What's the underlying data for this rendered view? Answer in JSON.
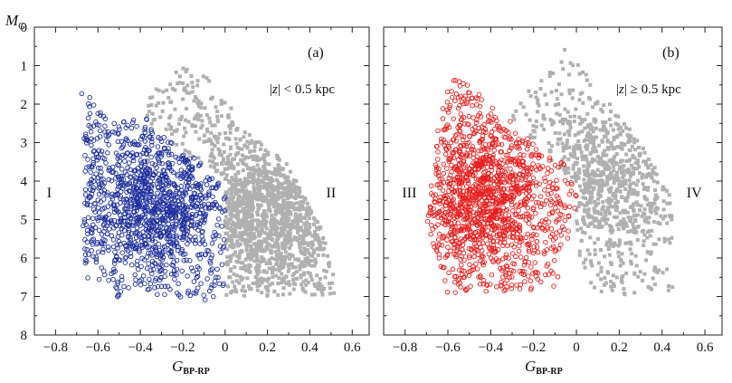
{
  "chart_data": [
    {
      "type": "scatter",
      "panel": "(a)",
      "condition": {
        "abs_open": "|",
        "var": "z",
        "abs_close": "|",
        "rel": " < 0.5 kpc"
      },
      "y_axis": {
        "label": "M",
        "label_sub": "G",
        "ylim": [
          0,
          8
        ],
        "inverted": true,
        "ticks": [
          0,
          1,
          2,
          3,
          4,
          5,
          6,
          7,
          8
        ]
      },
      "x_axis": {
        "label": "G",
        "label_sub": "BP-RP",
        "xlim": [
          -0.9,
          0.68
        ],
        "ticks": [
          -0.8,
          -0.6,
          -0.4,
          -0.2,
          0,
          0.2,
          0.4,
          0.6
        ],
        "tick_labels": [
          "−0.8",
          "−0.6",
          "−0.4",
          "−0.2",
          "0",
          "0.2",
          "0.4",
          "0.6"
        ]
      },
      "region_labels": [
        {
          "text": "I",
          "x": -0.83,
          "y": 4.3
        },
        {
          "text": "II",
          "x": 0.5,
          "y": 4.3
        }
      ],
      "series": [
        {
          "marker": "open-circle",
          "color": "#1f2f9e",
          "x_range": [
            -0.68,
            0
          ],
          "density_peak": [
            -0.33,
            4.6
          ],
          "envelope": [
            [
              -0.68,
              1.45
            ],
            [
              -0.55,
              2.5
            ],
            [
              -0.35,
              2.3
            ],
            [
              -0.2,
              3.2
            ],
            [
              0,
              3.9
            ],
            [
              0,
              6.9
            ],
            [
              -0.05,
              7.1
            ],
            [
              -0.3,
              7.05
            ],
            [
              -0.55,
              7.0
            ],
            [
              -0.68,
              6.6
            ],
            [
              -0.66,
              3.5
            ]
          ],
          "n_points": 1300
        },
        {
          "marker": "filled-square",
          "color": "#b0b0b0",
          "x_range": [
            -0.35,
            0.55
          ],
          "density_peak": [
            0.2,
            4.9
          ],
          "envelope": [
            [
              -0.35,
              1.6
            ],
            [
              -0.2,
              1.05
            ],
            [
              -0.1,
              1.2
            ],
            [
              0.1,
              2.6
            ],
            [
              0.3,
              3.6
            ],
            [
              0.45,
              5.2
            ],
            [
              0.55,
              6.95
            ],
            [
              0.3,
              7.0
            ],
            [
              0,
              7.0
            ],
            [
              0,
              3.9
            ],
            [
              -0.2,
              3.2
            ],
            [
              -0.38,
              2.4
            ]
          ],
          "n_points": 1500
        }
      ]
    },
    {
      "type": "scatter",
      "panel": "(b)",
      "condition": {
        "abs_open": "|",
        "var": "z",
        "abs_close": "|",
        "rel": " ≥ 0.5 kpc"
      },
      "y_axis": {
        "ylim": [
          0,
          8
        ],
        "inverted": true
      },
      "x_axis": {
        "label": "G",
        "label_sub": "BP-RP",
        "xlim": [
          -0.9,
          0.68
        ],
        "ticks": [
          -0.8,
          -0.6,
          -0.4,
          -0.2,
          0,
          0.2,
          0.4,
          0.6
        ],
        "tick_labels": [
          "−0.8",
          "−0.6",
          "−0.4",
          "−0.2",
          "0",
          "0.2",
          "0.4",
          "0.6"
        ]
      },
      "region_labels": [
        {
          "text": "III",
          "x": -0.78,
          "y": 4.3
        },
        {
          "text": "IV",
          "x": 0.55,
          "y": 4.3
        }
      ],
      "series": [
        {
          "marker": "open-circle",
          "color": "#e8201e",
          "x_range": [
            -0.7,
            0
          ],
          "density_peak": [
            -0.43,
            4.4
          ],
          "envelope": [
            [
              -0.6,
              1.3
            ],
            [
              -0.5,
              1.5
            ],
            [
              -0.35,
              2.2
            ],
            [
              -0.2,
              3.0
            ],
            [
              -0.05,
              3.6
            ],
            [
              0,
              4.1
            ],
            [
              0,
              5.0
            ],
            [
              -0.1,
              6.8
            ],
            [
              -0.4,
              6.9
            ],
            [
              -0.6,
              6.95
            ],
            [
              -0.7,
              5.0
            ],
            [
              -0.64,
              2.4
            ]
          ],
          "n_points": 1400
        },
        {
          "marker": "filled-square",
          "color": "#b0b0b0",
          "x_range": [
            -0.25,
            0.45
          ],
          "density_peak": [
            0.15,
            4.0
          ],
          "envelope": [
            [
              -0.28,
              2.0
            ],
            [
              -0.15,
              1.2
            ],
            [
              -0.05,
              0.5
            ],
            [
              0.1,
              1.6
            ],
            [
              0.3,
              3.0
            ],
            [
              0.45,
              4.4
            ],
            [
              0.45,
              6.9
            ],
            [
              0.1,
              7.0
            ],
            [
              0,
              6.0
            ],
            [
              0,
              4.1
            ],
            [
              -0.2,
              3.0
            ],
            [
              -0.3,
              2.4
            ]
          ],
          "n_points": 900
        }
      ]
    }
  ]
}
